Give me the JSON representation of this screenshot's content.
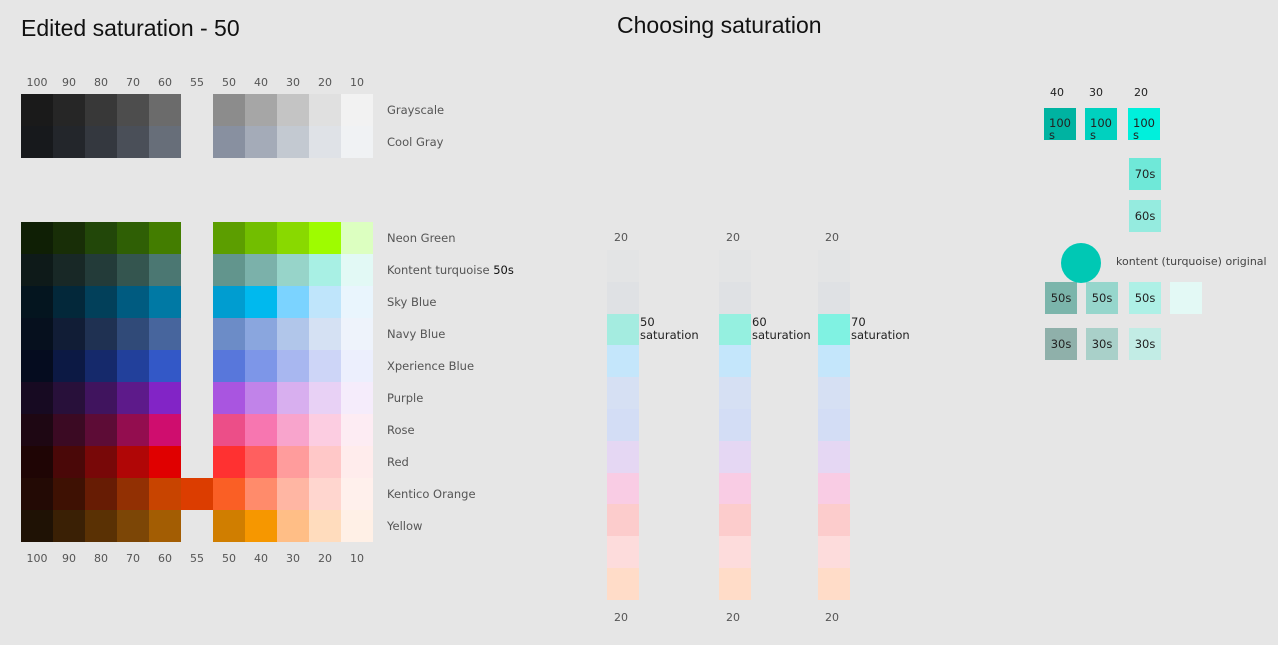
{
  "left": {
    "title": "Edited saturation - 50",
    "scale_top": [
      "100",
      "90",
      "80",
      "70",
      "60",
      "55",
      "50",
      "40",
      "30",
      "20",
      "10"
    ],
    "scale_bottom": [
      "100",
      "90",
      "80",
      "70",
      "60",
      "55",
      "50",
      "40",
      "30",
      "20",
      "10"
    ],
    "groups": [
      [
        {
          "name": "Grayscale",
          "colors": [
            "#1a1a1a",
            "#262626",
            "#383838",
            "#4d4d4d",
            "#6b6b6b",
            null,
            "#8c8c8c",
            "#a6a6a6",
            "#c4c4c4",
            "#e0e0e0",
            "#f2f2f2"
          ]
        },
        {
          "name": "Cool Gray",
          "colors": [
            "#17191c",
            "#23262b",
            "#34383f",
            "#4a4f58",
            "#676e79",
            null,
            "#8890a0",
            "#a4abb8",
            "#c3c9d1",
            "#dfe2e7",
            "#f0f2f4"
          ]
        }
      ],
      [
        {
          "name": "Neon Green",
          "colors": [
            "#0f1f05",
            "#182e07",
            "#224709",
            "#2f5f05",
            "#437d00",
            null,
            "#5c9e00",
            "#72be00",
            "#89d900",
            "#9efc00",
            "#dcffc0"
          ]
        },
        {
          "name": "Kontent turquoise",
          "tag": "50s",
          "colors": [
            "#0e1a19",
            "#182826",
            "#233b39",
            "#34554f",
            "#4b7772",
            null,
            "#62958d",
            "#7bb1aa",
            "#97d4c9",
            "#a8f0e4",
            "#e2f9f5"
          ]
        },
        {
          "name": "Sky Blue",
          "colors": [
            "#04151f",
            "#03283a",
            "#02405a",
            "#005b80",
            "#0079a4",
            null,
            "#009dd0",
            "#00b9ee",
            "#7bd3ff",
            "#bfe5fb",
            "#e9f5fd"
          ]
        },
        {
          "name": "Navy Blue",
          "colors": [
            "#06101e",
            "#111d36",
            "#1f3152",
            "#304a78",
            "#47659d",
            null,
            "#6c8cc7",
            "#8aa6de",
            "#b1c6ea",
            "#d5e1f3",
            "#eef3fb"
          ]
        },
        {
          "name": "Xperience Blue",
          "colors": [
            "#050c1f",
            "#0c1944",
            "#15296b",
            "#22409b",
            "#3358c7",
            null,
            "#5877db",
            "#7d96e8",
            "#a8b7f0",
            "#cdd5f7",
            "#eceffd"
          ]
        },
        {
          "name": "Purple",
          "colors": [
            "#170a22",
            "#28103a",
            "#40145e",
            "#5d1a8a",
            "#8224c6",
            null,
            "#a955e0",
            "#c183e9",
            "#d8afef",
            "#e8d1f5",
            "#f5ecfb"
          ]
        },
        {
          "name": "Rose",
          "colors": [
            "#1e0713",
            "#3b0a23",
            "#5d0c36",
            "#930d4f",
            "#cf0d6e",
            null,
            "#ec4e88",
            "#f776b0",
            "#f8a4cc",
            "#fccde1",
            "#fdecf3"
          ]
        },
        {
          "name": "Red",
          "colors": [
            "#1f0505",
            "#4a0808",
            "#780808",
            "#b00606",
            "#e00000",
            null,
            "#ff3131",
            "#ff5f5f",
            "#ff9c9c",
            "#ffc8c8",
            "#ffecec"
          ]
        },
        {
          "name": "Kentico Orange",
          "colors": [
            "#230a05",
            "#3e1103",
            "#671c04",
            "#923003",
            "#c84400",
            "#dc3d00",
            "#fa5f25",
            "#ff8b6b",
            "#ffb6a3",
            "#ffd6cf",
            "#fff0ec"
          ]
        },
        {
          "name": "Yellow",
          "colors": [
            "#1f1205",
            "#3a2005",
            "#5a3104",
            "#7c4606",
            "#a35d03",
            null,
            "#d07e00",
            "#f69700",
            "#ffbe86",
            "#ffdcbd",
            "#fff0e6"
          ]
        }
      ]
    ]
  },
  "middle": {
    "title": "Choosing saturation",
    "columns": [
      {
        "top": "20",
        "bottom": "20",
        "label": "50",
        "label_suffix": "saturation",
        "colors": [
          "#e3e4e5",
          "#dfe1e4",
          "#a4ece0",
          "#c4e6fb",
          "#d6e0f3",
          "#d3ddf5",
          "#e5d7f3",
          "#f9cce4",
          "#fccccc",
          "#fddcdc",
          "#ffdcc8"
        ]
      },
      {
        "top": "20",
        "bottom": "20",
        "label": "60",
        "label_suffix": "saturation",
        "colors": [
          "#e3e4e5",
          "#dfe1e4",
          "#95f0e0",
          "#c4e6fb",
          "#d6e0f3",
          "#d3ddf5",
          "#e5d7f3",
          "#f9cce4",
          "#fccccc",
          "#fddcdc",
          "#ffdcc8"
        ]
      },
      {
        "top": "20",
        "bottom": "20",
        "label": "70",
        "label_suffix": "saturation",
        "colors": [
          "#e3e4e5",
          "#dfe1e4",
          "#80f2e2",
          "#c4e6fb",
          "#d6e0f3",
          "#d3ddf5",
          "#e5d7f3",
          "#f9cce4",
          "#fccccc",
          "#fddcdc",
          "#ffdcc8"
        ]
      }
    ]
  },
  "right": {
    "headers": [
      "40",
      "30",
      "20"
    ],
    "boxes": [
      {
        "label": "100s",
        "color": "#00b3a1"
      },
      {
        "label": "100s",
        "color": "#00d1bf"
      },
      {
        "label": "100s",
        "color": "#00f0dc"
      },
      {
        "label": "70s",
        "color": "#6fe8d8"
      },
      {
        "label": "60s",
        "color": "#95ebdf"
      },
      {
        "label": "50s",
        "color": "#7bb5ab"
      },
      {
        "label": "50s",
        "color": "#96d6cc"
      },
      {
        "label": "50s",
        "color": "#aef0e6"
      },
      {
        "color": "#e3f9f5"
      },
      {
        "label": "30s",
        "color": "#8fb0aa"
      },
      {
        "label": "30s",
        "color": "#a9d0c9"
      },
      {
        "label": "30s",
        "color": "#c2ece5"
      }
    ],
    "original": {
      "label": "kontent (turquoise) original",
      "color": "#00c8b4"
    }
  }
}
